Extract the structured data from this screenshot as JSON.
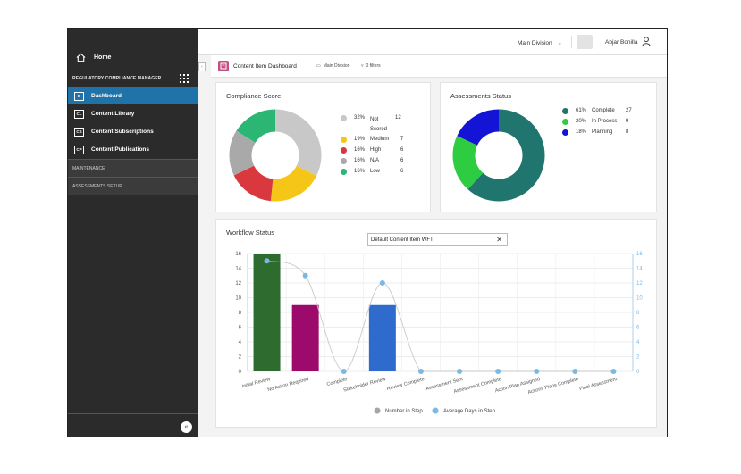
{
  "sidebar": {
    "home_label": "Home",
    "app_title": "REGULATORY COMPLIANCE MANAGER",
    "items": [
      {
        "badge": "D",
        "label": "Dashboard",
        "active": true
      },
      {
        "badge": "CL",
        "label": "Content Library",
        "active": false
      },
      {
        "badge": "CS",
        "label": "Content Subscriptions",
        "active": false
      },
      {
        "badge": "CP",
        "label": "Content Publications",
        "active": false
      }
    ],
    "sections": [
      "MAINTENANCE",
      "ASSESSMENTS SETUP"
    ],
    "collapse_label": "«"
  },
  "topbar": {
    "division": "Main Division",
    "user_name": "Abjar Bonilla"
  },
  "breadcrumb": {
    "title": "Content Item Dashboard",
    "division": "Main Division",
    "filters": "0 filters"
  },
  "compliance": {
    "title": "Compliance Score",
    "items": [
      {
        "pct": "32%",
        "label": "Not Scored",
        "count": "12",
        "color": "#c8c8c8",
        "value": 32
      },
      {
        "pct": "19%",
        "label": "Medium",
        "count": "7",
        "color": "#f5c518",
        "value": 19
      },
      {
        "pct": "16%",
        "label": "High",
        "count": "6",
        "color": "#d9393e",
        "value": 16
      },
      {
        "pct": "16%",
        "label": "N/A",
        "count": "6",
        "color": "#a9a9a9",
        "value": 16
      },
      {
        "pct": "16%",
        "label": "Low",
        "count": "6",
        "color": "#2bb673",
        "value": 16
      }
    ]
  },
  "assessments": {
    "title": "Assessments Status",
    "items": [
      {
        "pct": "61%",
        "label": "Complete",
        "count": "27",
        "color": "#21756f",
        "value": 61
      },
      {
        "pct": "20%",
        "label": "In Process",
        "count": "9",
        "color": "#2ecc40",
        "value": 20
      },
      {
        "pct": "18%",
        "label": "Planning",
        "count": "8",
        "color": "#1414d6",
        "value": 18
      }
    ]
  },
  "workflow": {
    "title": "Workflow Status",
    "select_value": "Default Content Item WFT",
    "legend": [
      "Number in Step",
      "Average Days in Step"
    ]
  },
  "chart_data": {
    "type": "bar",
    "categories": [
      "Initial Review",
      "No Action Required",
      "Complete",
      "Stakeholder Review",
      "Review Complete",
      "Assessment Sent",
      "Assessment Complete",
      "Action Plan Assigned",
      "Actions Plans Complete",
      "Final Assessment"
    ],
    "series": [
      {
        "name": "Number in Step",
        "type": "bar",
        "values": [
          16,
          9,
          0,
          9,
          0,
          0,
          0,
          0,
          0,
          0
        ],
        "colors": [
          "#2e6b2e",
          "#9c0a6b",
          "#999999",
          "#2f6bcc",
          "#999999",
          "#999999",
          "#999999",
          "#999999",
          "#999999",
          "#999999"
        ]
      },
      {
        "name": "Average Days in Step",
        "type": "line",
        "values": [
          15,
          13,
          0,
          12,
          0,
          0,
          0,
          0,
          0,
          0
        ],
        "color": "#7ab8e6"
      }
    ],
    "ylim": [
      0,
      16
    ],
    "yticks": [
      0,
      2,
      4,
      6,
      8,
      10,
      12,
      14,
      16
    ],
    "y2lim": [
      0,
      16
    ],
    "y2ticks": [
      0,
      2,
      4,
      6,
      8,
      10,
      12,
      14,
      16
    ],
    "grid": true,
    "legend_position": "bottom"
  }
}
